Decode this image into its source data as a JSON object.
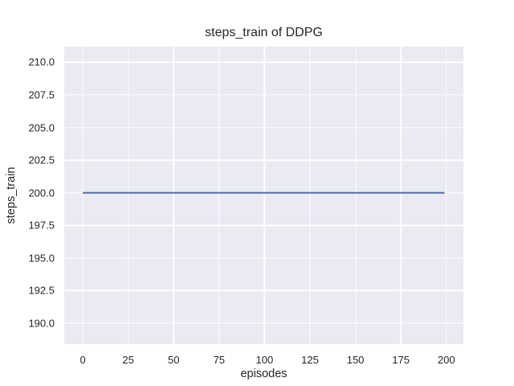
{
  "chart_data": {
    "type": "line",
    "title": "steps_train of DDPG",
    "xlabel": "episodes",
    "ylabel": "steps_train",
    "series": [
      {
        "name": "steps_train",
        "color": "#4c72b0",
        "linewidth": 2,
        "x": [
          0,
          199
        ],
        "y": [
          200,
          200
        ]
      }
    ],
    "xlim": [
      -10.2,
      209.4
    ],
    "ylim": [
      188.4,
      211.2
    ],
    "xticks": {
      "values": [
        0,
        25,
        50,
        75,
        100,
        125,
        150,
        175,
        200
      ],
      "labels": [
        "0",
        "25",
        "50",
        "75",
        "100",
        "125",
        "150",
        "175",
        "200"
      ]
    },
    "yticks": {
      "values": [
        190,
        192.5,
        195,
        197.5,
        200,
        202.5,
        205,
        207.5,
        210
      ],
      "labels": [
        "190.0",
        "192.5",
        "195.0",
        "197.5",
        "200.0",
        "202.5",
        "205.0",
        "207.5",
        "210.0"
      ]
    },
    "grid": true,
    "legend": false,
    "colors": {
      "plot_background": "#eaeaf2",
      "figure_background": "#ffffff",
      "gridline": "#ffffff",
      "text": "#262626"
    }
  }
}
